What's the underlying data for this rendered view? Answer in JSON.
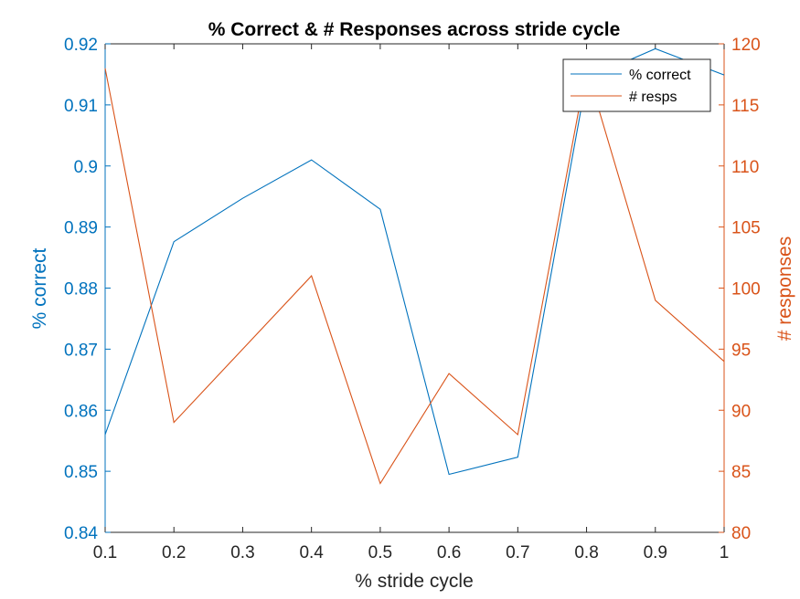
{
  "chart_data": {
    "type": "line",
    "title": "% Correct & # Responses across stride cycle",
    "xlabel": "% stride cycle",
    "ylabel_left": "% correct",
    "ylabel_right": "# responses",
    "x": [
      0.1,
      0.2,
      0.3,
      0.4,
      0.5,
      0.6,
      0.7,
      0.8,
      0.9,
      1.0
    ],
    "x_tick_labels": [
      "0.1",
      "0.2",
      "0.3",
      "0.4",
      "0.5",
      "0.6",
      "0.7",
      "0.8",
      "0.9",
      "1"
    ],
    "xlim": [
      0.1,
      1.0
    ],
    "ylim_left": [
      0.84,
      0.92
    ],
    "ylim_right": [
      80,
      120
    ],
    "y_left_tick_labels": [
      "0.84",
      "0.85",
      "0.86",
      "0.87",
      "0.88",
      "0.89",
      "0.9",
      "0.91",
      "0.92"
    ],
    "y_right_tick_labels": [
      "80",
      "85",
      "90",
      "95",
      "100",
      "105",
      "110",
      "115",
      "120"
    ],
    "grid": false,
    "legend_position": "top-right",
    "series": [
      {
        "name": "% correct",
        "axis": "left",
        "color": "#0072BD",
        "values": [
          0.856,
          0.8876,
          0.8947,
          0.901,
          0.8929,
          0.8495,
          0.8523,
          0.9143,
          0.9192,
          0.9149
        ]
      },
      {
        "name": "# resps",
        "axis": "right",
        "color": "#D95319",
        "values": [
          118,
          89,
          95,
          101,
          84,
          93,
          88,
          118,
          99,
          94
        ]
      }
    ],
    "axis_colors": {
      "left": "#0072BD",
      "right": "#D95319",
      "x": "#262626"
    }
  }
}
